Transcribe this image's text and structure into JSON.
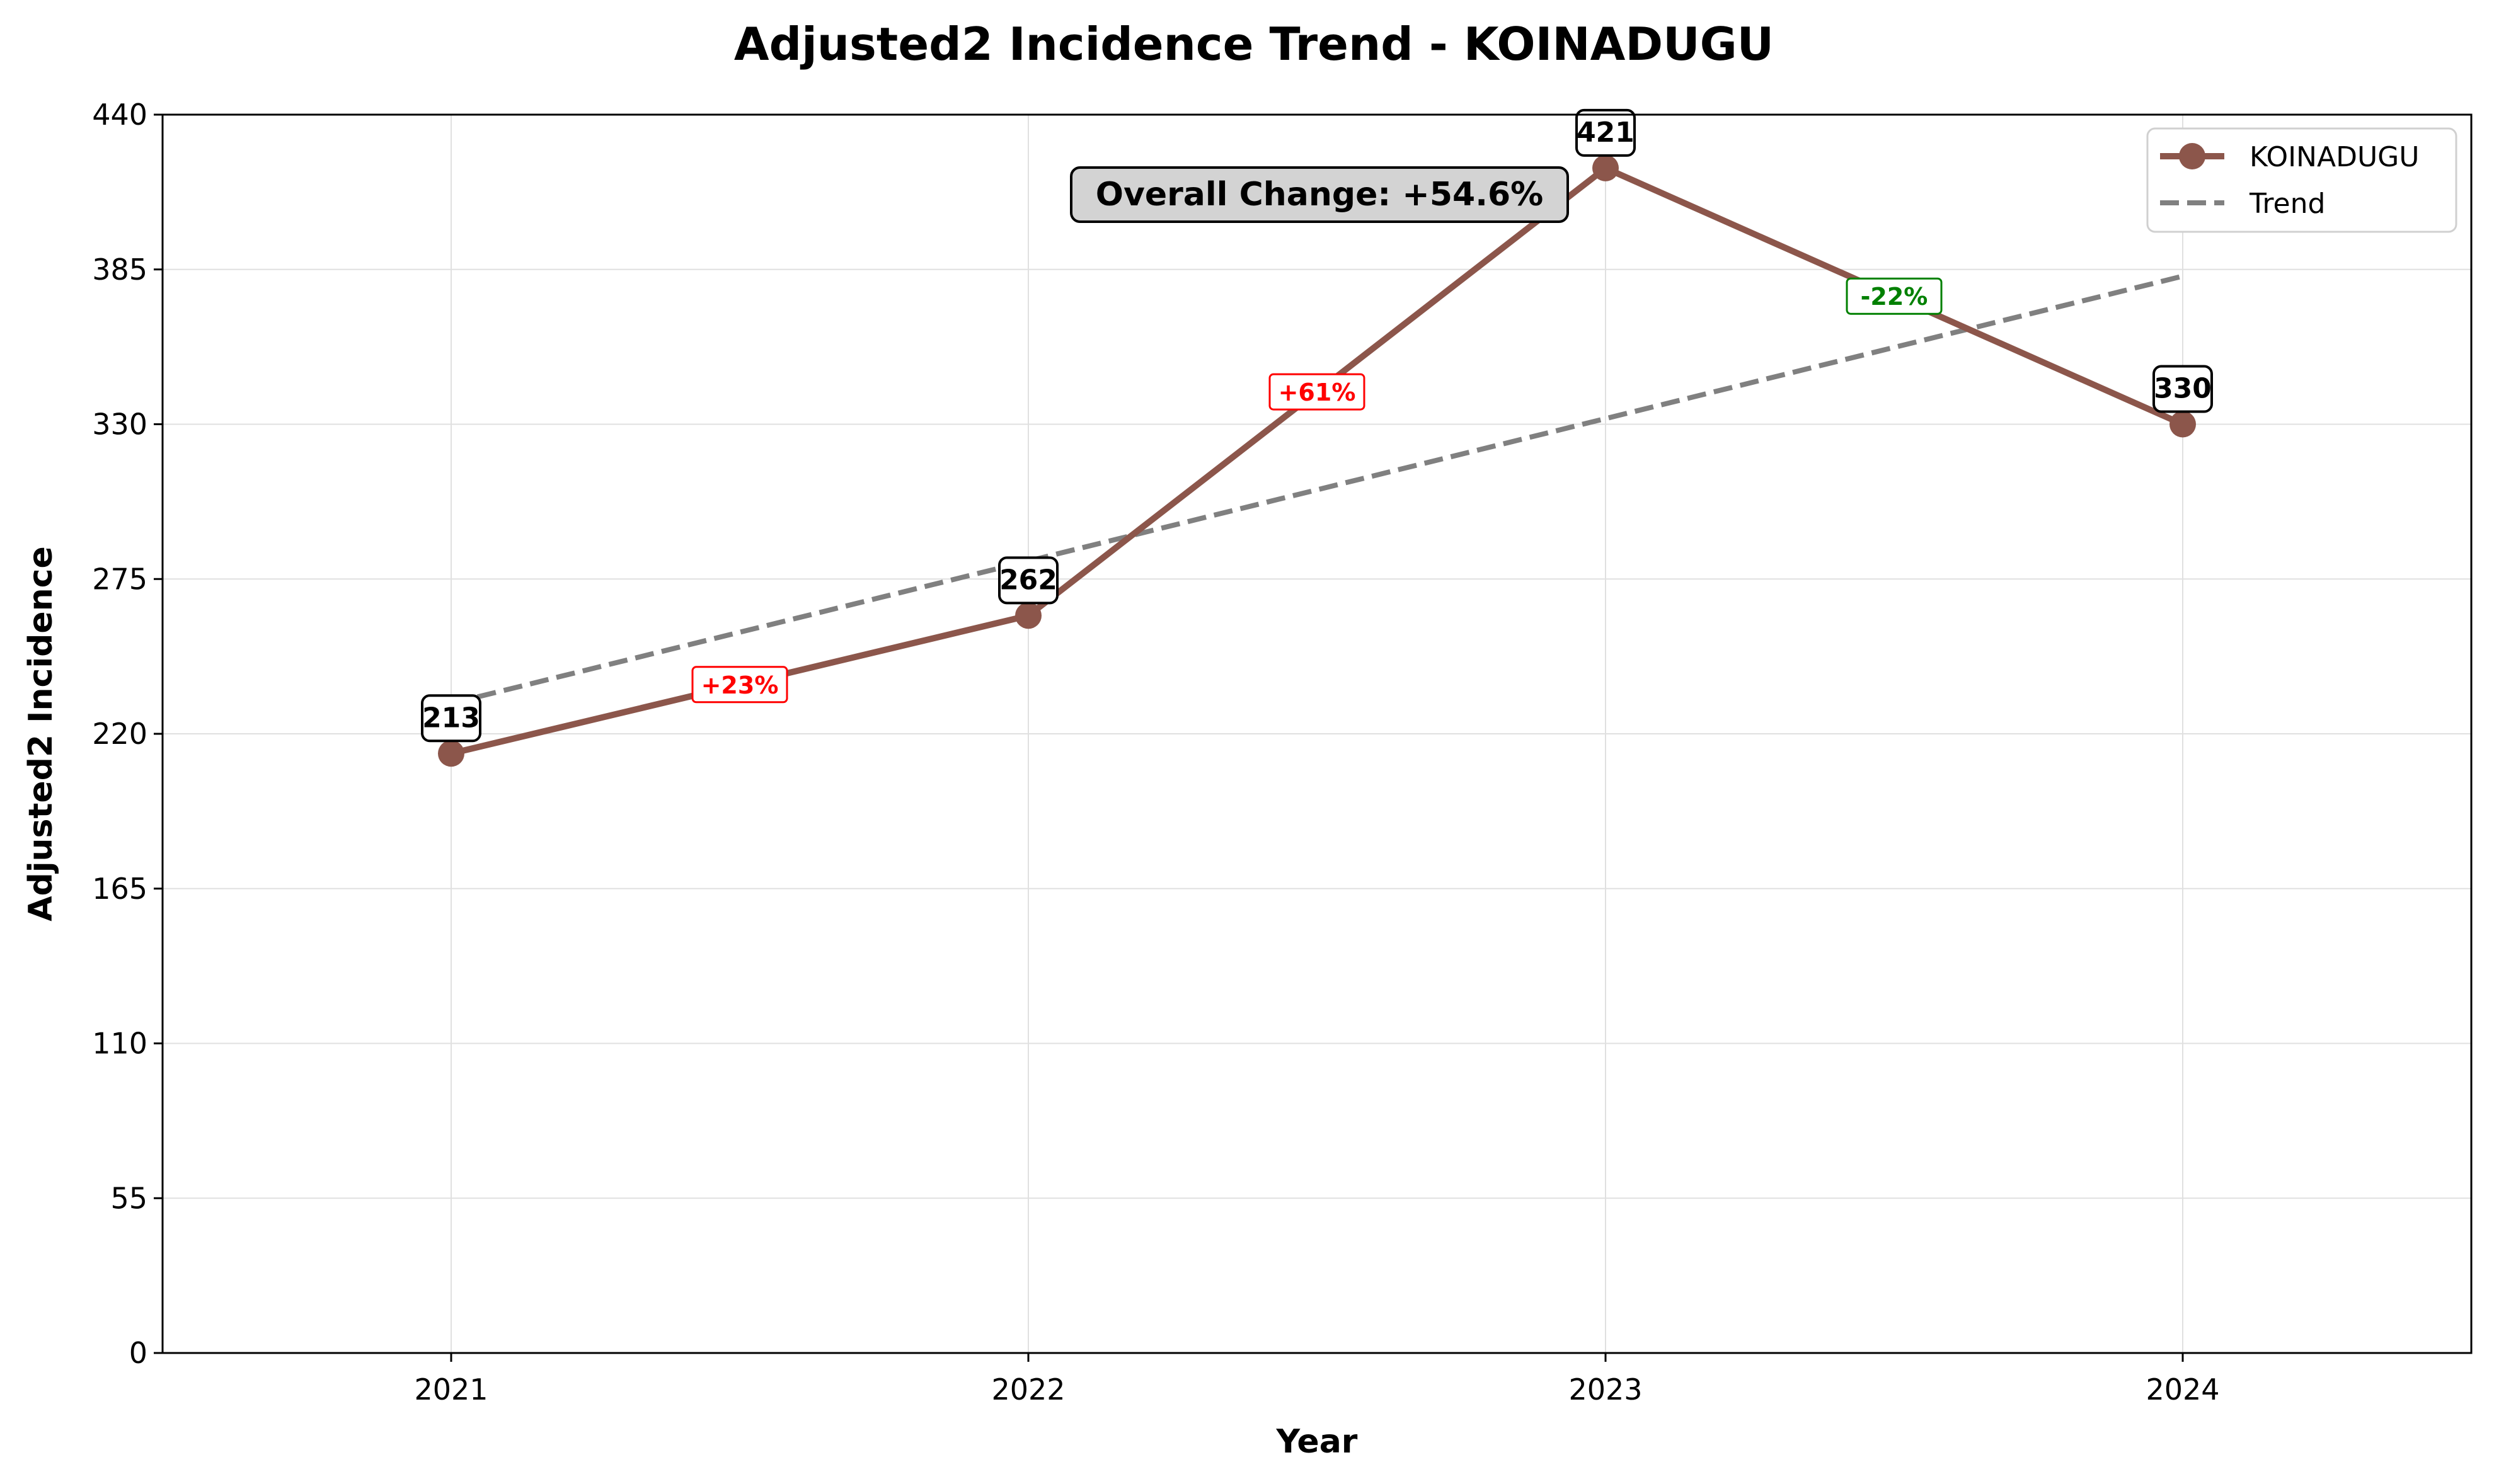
{
  "chart_data": {
    "type": "line",
    "title": "Adjusted2 Incidence Trend - KOINADUGU",
    "xlabel": "Year",
    "ylabel": "Adjusted2 Incidence",
    "categories": [
      "2021",
      "2022",
      "2023",
      "2024"
    ],
    "yticks": [
      "0",
      "55",
      "110",
      "165",
      "220",
      "275",
      "330",
      "385",
      "440"
    ],
    "ylim": [
      0,
      440
    ],
    "grid": true,
    "legend_position": "upper right",
    "series": [
      {
        "name": "KOINADUGU",
        "values": [
          213,
          262,
          421,
          330
        ],
        "color": "#8c564b",
        "marker": "circle",
        "value_labels": [
          "213",
          "262",
          "421",
          "330"
        ]
      },
      {
        "name": "Trend",
        "values": [
          230.8,
          281.4,
          332.0,
          382.6
        ],
        "color": "#808080",
        "style": "dashed"
      }
    ],
    "change_labels": [
      {
        "text": "+23%",
        "color": "#ff0000"
      },
      {
        "text": "+61%",
        "color": "#ff0000"
      },
      {
        "text": "-22%",
        "color": "#008000"
      }
    ],
    "annotation": "Overall Change: +54.6%"
  }
}
